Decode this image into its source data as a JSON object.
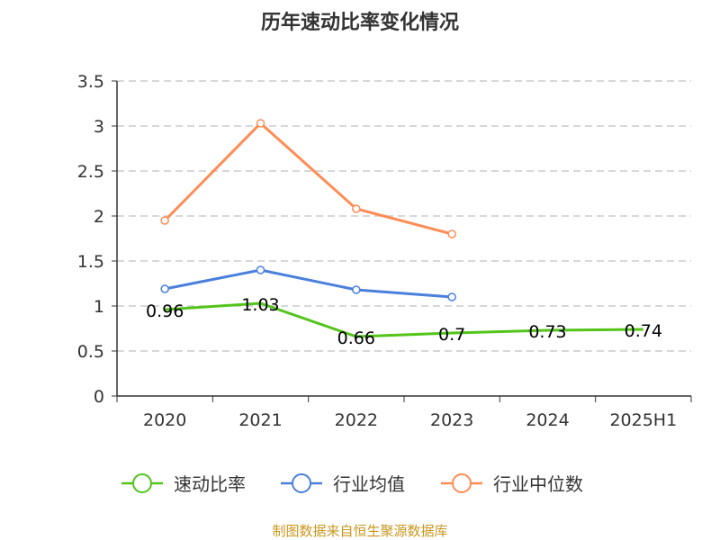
{
  "chart_data": {
    "type": "line",
    "title": "历年速动比率变化情况",
    "categories": [
      "2020",
      "2021",
      "2022",
      "2023",
      "2024",
      "2025H1"
    ],
    "ylim": [
      0,
      3.5
    ],
    "yticks": [
      "0",
      "0.5",
      "1",
      "1.5",
      "2",
      "2.5",
      "3",
      "3.5"
    ],
    "grid": true,
    "legend_position": "bottom",
    "series": [
      {
        "name": "速动比率",
        "color": "#52c41a",
        "values": [
          0.96,
          1.03,
          0.66,
          0.7,
          0.73,
          0.74
        ],
        "labels": [
          "0.96",
          "1.03",
          "0.66",
          "0.7",
          "0.73",
          "0.74"
        ],
        "markers": false
      },
      {
        "name": "行业均值",
        "color": "#4a7fdc",
        "values": [
          1.19,
          1.4,
          1.18,
          1.1,
          null,
          null
        ],
        "markers": true
      },
      {
        "name": "行业中位数",
        "color": "#ff8c55",
        "values": [
          1.95,
          3.03,
          2.08,
          1.8,
          null,
          null
        ],
        "markers": true
      }
    ],
    "source": "制图数据来自恒生聚源数据库"
  }
}
